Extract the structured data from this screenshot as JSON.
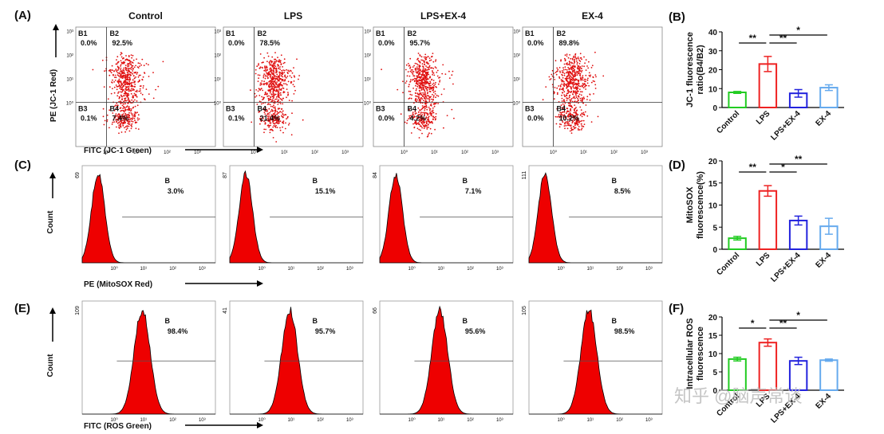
{
  "panel_labels": [
    "(A)",
    "(B)",
    "(C)",
    "(D)",
    "(E)",
    "(F)"
  ],
  "groups": [
    "Control",
    "LPS",
    "LPS+EX-4",
    "EX-4"
  ],
  "log_ticks": [
    "10⁰",
    "10¹",
    "10²",
    "10³"
  ],
  "jc1_plots": {
    "y_label": "PE (JC-1 Red)",
    "x_label": "FITC (JC-1 Green)",
    "gates": [
      "B1",
      "B2",
      "B3",
      "B4"
    ],
    "percents": [
      [
        "0.0%",
        "92.5%",
        "0.1%",
        "7.4%"
      ],
      [
        "0.0%",
        "78.5%",
        "0.1%",
        "21.4%"
      ],
      [
        "0.0%",
        "95.7%",
        "0.0%",
        "4.2%"
      ],
      [
        "0.0%",
        "89.8%",
        "0.0%",
        "10.2%"
      ]
    ]
  },
  "mitosox_plots": {
    "y_label": "Count",
    "x_label": "PE (MitoSOX Red)",
    "gate": "B",
    "max_counts": [
      "69",
      "87",
      "84",
      "111"
    ],
    "percents": [
      "3.0%",
      "15.1%",
      "7.1%",
      "8.5%"
    ]
  },
  "ros_plots": {
    "y_label": "Count",
    "x_label": "FITC (ROS Green)",
    "gate": "B",
    "max_counts": [
      "109",
      "41",
      "66",
      "105"
    ],
    "percents": [
      "98.4%",
      "95.7%",
      "95.6%",
      "98.5%"
    ]
  },
  "bar_charts": [
    {
      "type": "bar",
      "y_label": [
        "JC-1 fluorescence",
        "ratio(B4/B2)"
      ],
      "categories": [
        "Control",
        "LPS",
        "LPS+EX-4",
        "EX-4"
      ],
      "values": [
        8,
        23,
        7.5,
        10.5
      ],
      "errors": [
        0.5,
        4,
        2,
        1.5
      ],
      "colors": [
        "#22cc22",
        "#ee2222",
        "#2222dd",
        "#66aaee"
      ],
      "ylim": [
        0,
        40
      ],
      "yticks": [
        0,
        10,
        20,
        30,
        40
      ],
      "significance": [
        {
          "label": "**",
          "between": [
            "Control",
            "LPS"
          ]
        },
        {
          "label": "**",
          "between": [
            "LPS",
            "LPS+EX-4"
          ]
        },
        {
          "label": "*",
          "between": [
            "LPS",
            "EX-4"
          ]
        }
      ]
    },
    {
      "type": "bar",
      "y_label": [
        "MitoSOX",
        "fluorescence(%)"
      ],
      "categories": [
        "Control",
        "LPS",
        "LPS+EX-4",
        "EX-4"
      ],
      "values": [
        2.5,
        13.2,
        6.5,
        5.2
      ],
      "errors": [
        0.4,
        1.2,
        1,
        1.8
      ],
      "colors": [
        "#22cc22",
        "#ee2222",
        "#2222dd",
        "#66aaee"
      ],
      "ylim": [
        0,
        20
      ],
      "yticks": [
        0,
        5,
        10,
        15,
        20
      ],
      "significance": [
        {
          "label": "**",
          "between": [
            "Control",
            "LPS"
          ]
        },
        {
          "label": "*",
          "between": [
            "LPS",
            "LPS+EX-4"
          ]
        },
        {
          "label": "**",
          "between": [
            "LPS",
            "EX-4"
          ]
        }
      ]
    },
    {
      "type": "bar",
      "y_label": [
        "Intracellular ROS",
        "fluorescence"
      ],
      "categories": [
        "Control",
        "LPS",
        "LPS+EX-4",
        "EX-4"
      ],
      "values": [
        8.5,
        13,
        8,
        8.2
      ],
      "errors": [
        0.5,
        1,
        1,
        0.3
      ],
      "colors": [
        "#22cc22",
        "#ee2222",
        "#2222dd",
        "#66aaee"
      ],
      "ylim": [
        0,
        20
      ],
      "yticks": [
        0,
        5,
        10,
        15,
        20
      ],
      "significance": [
        {
          "label": "*",
          "between": [
            "Control",
            "LPS"
          ]
        },
        {
          "label": "**",
          "between": [
            "LPS",
            "LPS+EX-4"
          ]
        },
        {
          "label": "*",
          "between": [
            "LPS",
            "EX-4"
          ]
        }
      ]
    }
  ],
  "watermark": "知乎 @脑声常谈"
}
